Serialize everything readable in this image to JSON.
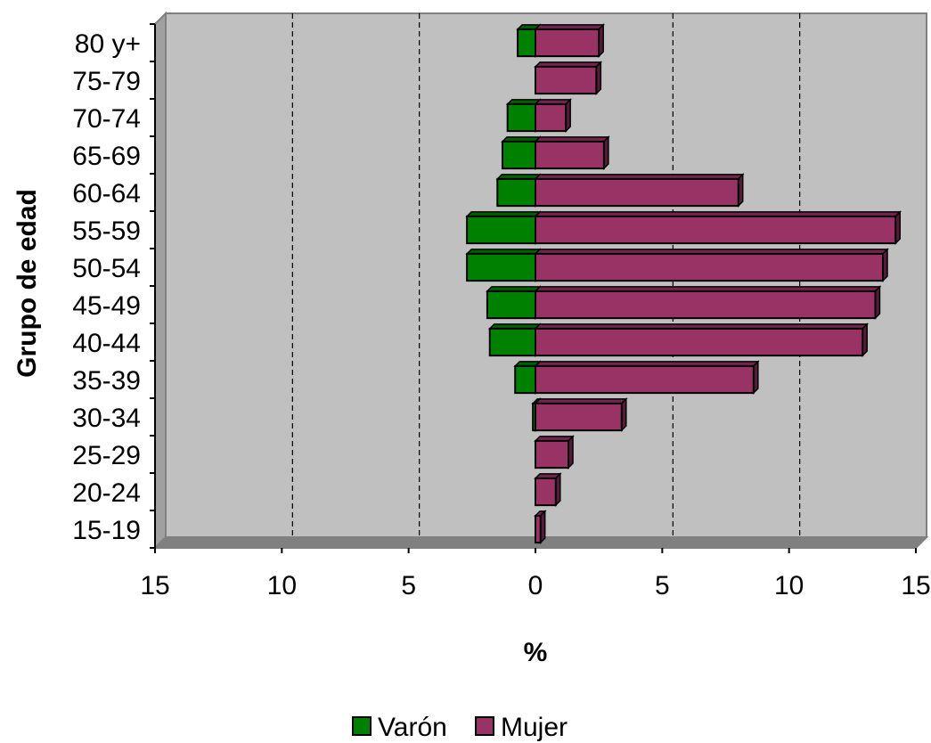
{
  "chart_data": {
    "type": "bar",
    "orientation": "horizontal",
    "subtype": "population-pyramid",
    "categories": [
      "15-19",
      "20-24",
      "25-29",
      "30-34",
      "35-39",
      "40-44",
      "45-49",
      "50-54",
      "55-59",
      "60-64",
      "65-69",
      "70-74",
      "75-79",
      "80 y+"
    ],
    "series": [
      {
        "name": "Varón",
        "color": "#008000",
        "values": [
          0,
          0,
          0,
          0.1,
          0.8,
          1.8,
          1.9,
          2.7,
          2.7,
          1.5,
          1.3,
          1.1,
          0,
          0.7
        ]
      },
      {
        "name": "Mujer",
        "color": "#993366",
        "values": [
          0.2,
          0.8,
          1.3,
          3.4,
          8.6,
          12.9,
          13.4,
          13.7,
          14.2,
          8.0,
          2.7,
          1.2,
          2.4,
          2.5
        ]
      }
    ],
    "xlabel": "%",
    "ylabel": "Grupo de edad",
    "xlim": [
      -15,
      15
    ],
    "xticks": [
      "15",
      "10",
      "5",
      "0",
      "5",
      "10",
      "15"
    ],
    "gridlines": "vertical-dashed",
    "plot_background": "#c0c0c0",
    "legend_position": "bottom"
  }
}
